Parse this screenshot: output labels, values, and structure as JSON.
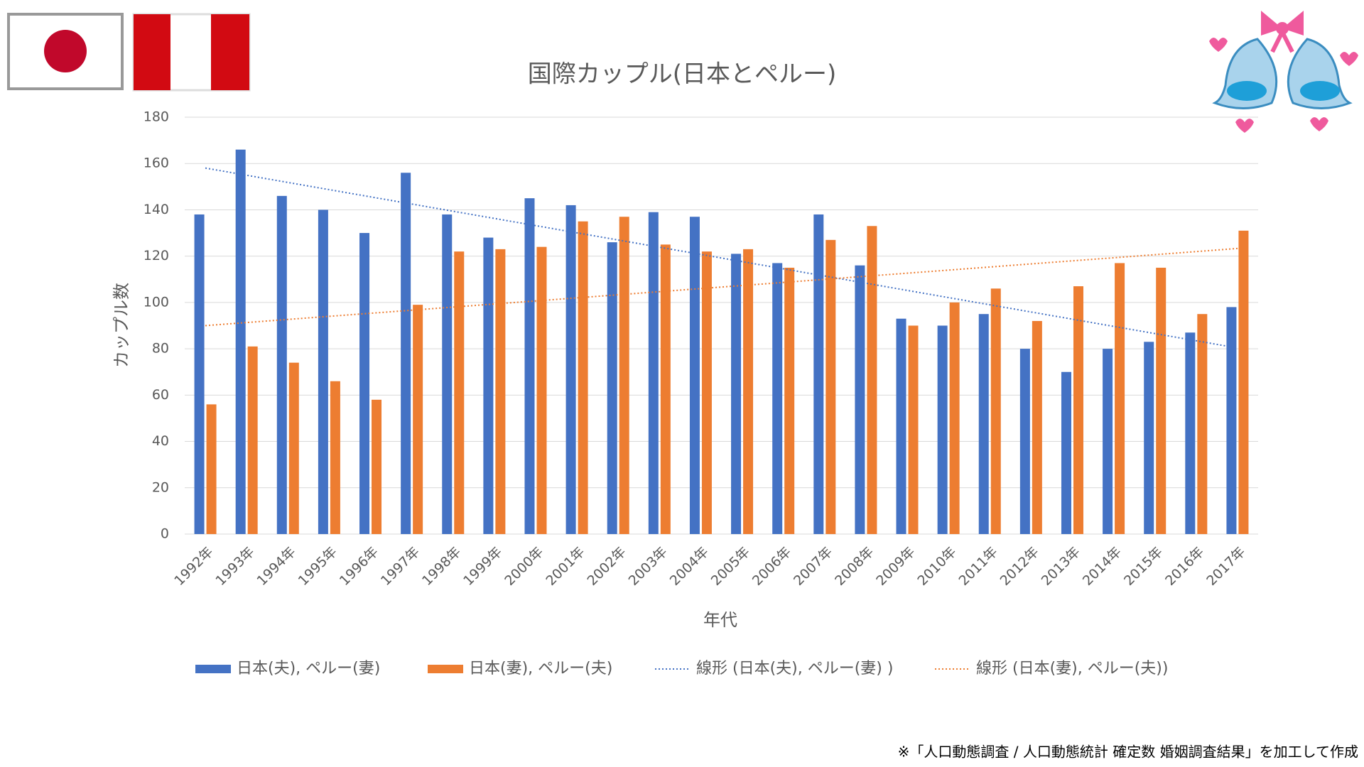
{
  "chart_data": {
    "type": "bar",
    "title": "国際カップル(日本とペルー)",
    "xlabel": "年代",
    "ylabel": "カップル数",
    "categories": [
      "1992年",
      "1993年",
      "1994年",
      "1995年",
      "1996年",
      "1997年",
      "1998年",
      "1999年",
      "2000年",
      "2001年",
      "2002年",
      "2003年",
      "2004年",
      "2005年",
      "2006年",
      "2007年",
      "2008年",
      "2009年",
      "2010年",
      "2011年",
      "2012年",
      "2013年",
      "2014年",
      "2015年",
      "2016年",
      "2017年"
    ],
    "series": [
      {
        "name": "日本(夫), ペルー(妻)",
        "color": "#4472c4",
        "values": [
          138,
          166,
          146,
          140,
          130,
          156,
          138,
          128,
          145,
          142,
          126,
          139,
          137,
          121,
          117,
          138,
          116,
          93,
          90,
          95,
          80,
          70,
          80,
          83,
          87,
          98
        ]
      },
      {
        "name": "日本(妻), ペルー(夫)",
        "color": "#ed7d31",
        "values": [
          56,
          81,
          74,
          66,
          58,
          99,
          122,
          123,
          124,
          135,
          137,
          125,
          122,
          123,
          115,
          127,
          133,
          90,
          100,
          106,
          92,
          107,
          117,
          115,
          95,
          131
        ]
      }
    ],
    "trendlines": [
      {
        "name": "線形 (日本(夫), ペルー(妻) )",
        "color": "#4472c4"
      },
      {
        "name": "線形 (日本(妻), ペルー(夫))",
        "color": "#ed7d31"
      }
    ],
    "ylim": [
      0,
      180
    ],
    "yticks": [
      0,
      20,
      40,
      60,
      80,
      100,
      120,
      140,
      160,
      180
    ],
    "grid": true,
    "legend": "bottom",
    "note": "※「人口動態調査 / 人口動態統計 確定数 婚姻調査結果」を加工して作成"
  }
}
